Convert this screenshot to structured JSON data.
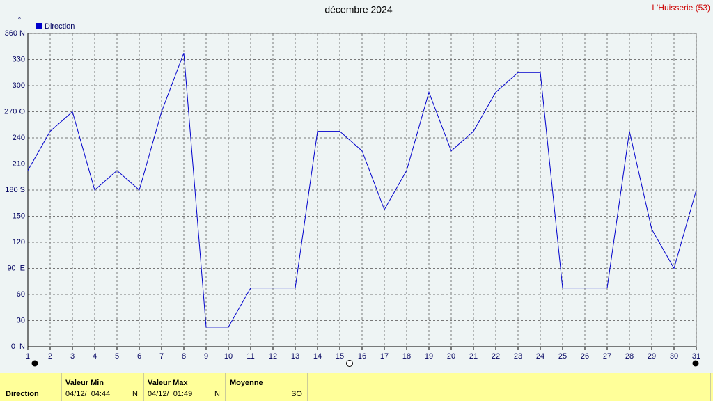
{
  "chart_data": {
    "type": "line",
    "title": "décembre 2024",
    "station": "L'Huisserie (53)",
    "y_unit": "°",
    "x": [
      1,
      2,
      3,
      4,
      5,
      6,
      7,
      8,
      9,
      10,
      11,
      12,
      13,
      14,
      15,
      16,
      17,
      18,
      19,
      20,
      21,
      22,
      23,
      24,
      25,
      26,
      27,
      28,
      29,
      30,
      31
    ],
    "xlim": [
      1,
      31
    ],
    "xticks": [
      1,
      2,
      3,
      4,
      5,
      6,
      7,
      8,
      9,
      10,
      11,
      12,
      13,
      14,
      15,
      16,
      17,
      18,
      19,
      20,
      21,
      22,
      23,
      24,
      25,
      26,
      27,
      28,
      29,
      30,
      31
    ],
    "series": [
      {
        "name": "Direction",
        "color": "#0000cc",
        "values": [
          202.5,
          247.5,
          270,
          180,
          202.5,
          180,
          270,
          337.5,
          22.5,
          22.5,
          67.5,
          67.5,
          67.5,
          247.5,
          247.5,
          225,
          157.5,
          202.5,
          292.5,
          225,
          247.5,
          292.5,
          315,
          315,
          67.5,
          67.5,
          67.5,
          247.5,
          135,
          90,
          180
        ]
      }
    ],
    "ylim": [
      0,
      360
    ],
    "yticks": [
      {
        "value": 0,
        "label": "0  N"
      },
      30,
      60,
      {
        "value": 90,
        "label": "90  E"
      },
      120,
      150,
      {
        "value": 180,
        "label": "180 S"
      },
      210,
      240,
      {
        "value": 270,
        "label": "270 O"
      },
      300,
      330,
      {
        "value": 360,
        "label": "360 N"
      }
    ],
    "grid": true
  },
  "table": {
    "row_label": "Direction",
    "columns": [
      {
        "header": "Valeur Min",
        "date": "04/12/  04:44",
        "value": "N"
      },
      {
        "header": "Valeur Max",
        "date": "04/12/  01:49",
        "value": "N"
      },
      {
        "header": "Moyenne",
        "value": "SO"
      }
    ]
  }
}
